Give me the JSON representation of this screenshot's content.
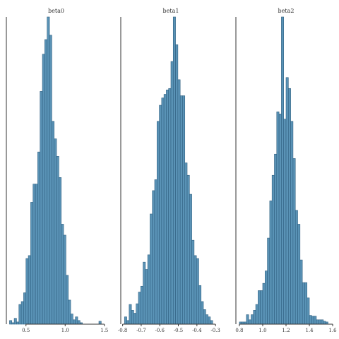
{
  "chart_data": [
    {
      "type": "histogram",
      "title": "beta0",
      "xlim": [
        0.25,
        1.52
      ],
      "xticks": [
        0.5,
        1.0,
        1.5
      ],
      "xtick_labels": [
        "0.5",
        "1.0",
        "1.5"
      ],
      "bins": [
        {
          "start": 0.29,
          "end": 0.32,
          "count": 5
        },
        {
          "start": 0.32,
          "end": 0.35,
          "count": 2
        },
        {
          "start": 0.35,
          "end": 0.38,
          "count": 8
        },
        {
          "start": 0.38,
          "end": 0.41,
          "count": 3
        },
        {
          "start": 0.41,
          "end": 0.44,
          "count": 27
        },
        {
          "start": 0.44,
          "end": 0.47,
          "count": 31
        },
        {
          "start": 0.47,
          "end": 0.5,
          "count": 43
        },
        {
          "start": 0.5,
          "end": 0.53,
          "count": 90
        },
        {
          "start": 0.53,
          "end": 0.56,
          "count": 94
        },
        {
          "start": 0.56,
          "end": 0.59,
          "count": 167
        },
        {
          "start": 0.59,
          "end": 0.62,
          "count": 192
        },
        {
          "start": 0.62,
          "end": 0.65,
          "count": 192
        },
        {
          "start": 0.65,
          "end": 0.68,
          "count": 236
        },
        {
          "start": 0.68,
          "end": 0.71,
          "count": 319
        },
        {
          "start": 0.71,
          "end": 0.74,
          "count": 370
        },
        {
          "start": 0.74,
          "end": 0.77,
          "count": 390
        },
        {
          "start": 0.77,
          "end": 0.8,
          "count": 421
        },
        {
          "start": 0.8,
          "end": 0.83,
          "count": 396
        },
        {
          "start": 0.83,
          "end": 0.86,
          "count": 278
        },
        {
          "start": 0.86,
          "end": 0.89,
          "count": 254
        },
        {
          "start": 0.89,
          "end": 0.92,
          "count": 230
        },
        {
          "start": 0.92,
          "end": 0.95,
          "count": 201
        },
        {
          "start": 0.95,
          "end": 0.98,
          "count": 137
        },
        {
          "start": 0.98,
          "end": 1.01,
          "count": 122
        },
        {
          "start": 1.01,
          "end": 1.04,
          "count": 67
        },
        {
          "start": 1.04,
          "end": 1.07,
          "count": 33
        },
        {
          "start": 1.07,
          "end": 1.1,
          "count": 14
        },
        {
          "start": 1.1,
          "end": 1.13,
          "count": 6
        },
        {
          "start": 1.13,
          "end": 1.16,
          "count": 10
        },
        {
          "start": 1.16,
          "end": 1.19,
          "count": 5
        },
        {
          "start": 1.19,
          "end": 1.22,
          "count": 2
        },
        {
          "start": 1.22,
          "end": 1.25,
          "count": 0
        },
        {
          "start": 1.25,
          "end": 1.28,
          "count": 0
        },
        {
          "start": 1.28,
          "end": 1.31,
          "count": 0
        },
        {
          "start": 1.31,
          "end": 1.34,
          "count": 0
        },
        {
          "start": 1.34,
          "end": 1.37,
          "count": 0
        },
        {
          "start": 1.37,
          "end": 1.4,
          "count": 0
        },
        {
          "start": 1.4,
          "end": 1.43,
          "count": 0
        },
        {
          "start": 1.43,
          "end": 1.46,
          "count": 4
        }
      ]
    },
    {
      "type": "histogram",
      "title": "beta1",
      "xlim": [
        -0.81,
        -0.27
      ],
      "xticks": [
        -0.8,
        -0.7,
        -0.6,
        -0.5,
        -0.4,
        -0.3
      ],
      "xtick_labels": [
        "-0.8",
        "-0.7",
        "-0.6",
        "-0.5",
        "-0.4",
        "-0.3"
      ],
      "bins": [
        {
          "start": -0.79,
          "end": -0.7775,
          "count": 10
        },
        {
          "start": -0.7775,
          "end": -0.765,
          "count": 5
        },
        {
          "start": -0.765,
          "end": -0.7525,
          "count": 27
        },
        {
          "start": -0.7525,
          "end": -0.74,
          "count": 19
        },
        {
          "start": -0.74,
          "end": -0.7275,
          "count": 15
        },
        {
          "start": -0.7275,
          "end": -0.715,
          "count": 28
        },
        {
          "start": -0.715,
          "end": -0.7025,
          "count": 44
        },
        {
          "start": -0.7025,
          "end": -0.69,
          "count": 52
        },
        {
          "start": -0.69,
          "end": -0.6775,
          "count": 85
        },
        {
          "start": -0.6775,
          "end": -0.665,
          "count": 75
        },
        {
          "start": -0.665,
          "end": -0.6525,
          "count": 95
        },
        {
          "start": -0.6525,
          "end": -0.64,
          "count": 151
        },
        {
          "start": -0.64,
          "end": -0.6275,
          "count": 183
        },
        {
          "start": -0.6275,
          "end": -0.615,
          "count": 198
        },
        {
          "start": -0.615,
          "end": -0.6025,
          "count": 278
        },
        {
          "start": -0.6025,
          "end": -0.59,
          "count": 300
        },
        {
          "start": -0.59,
          "end": -0.5775,
          "count": 310
        },
        {
          "start": -0.5775,
          "end": -0.565,
          "count": 315
        },
        {
          "start": -0.565,
          "end": -0.5525,
          "count": 321
        },
        {
          "start": -0.5525,
          "end": -0.54,
          "count": 323
        },
        {
          "start": -0.54,
          "end": -0.5275,
          "count": 360
        },
        {
          "start": -0.5275,
          "end": -0.515,
          "count": 421
        },
        {
          "start": -0.515,
          "end": -0.5025,
          "count": 383
        },
        {
          "start": -0.5025,
          "end": -0.49,
          "count": 335
        },
        {
          "start": -0.49,
          "end": -0.4775,
          "count": 313
        },
        {
          "start": -0.4775,
          "end": -0.465,
          "count": 313
        },
        {
          "start": -0.465,
          "end": -0.4525,
          "count": 221
        },
        {
          "start": -0.4525,
          "end": -0.44,
          "count": 204
        },
        {
          "start": -0.44,
          "end": -0.4275,
          "count": 178
        },
        {
          "start": -0.4275,
          "end": -0.415,
          "count": 115
        },
        {
          "start": -0.415,
          "end": -0.4025,
          "count": 94
        },
        {
          "start": -0.4025,
          "end": -0.39,
          "count": 90
        },
        {
          "start": -0.39,
          "end": -0.3775,
          "count": 53
        },
        {
          "start": -0.3775,
          "end": -0.365,
          "count": 31
        },
        {
          "start": -0.365,
          "end": -0.3525,
          "count": 20
        },
        {
          "start": -0.3525,
          "end": -0.34,
          "count": 13
        },
        {
          "start": -0.34,
          "end": -0.3275,
          "count": 10
        },
        {
          "start": -0.3275,
          "end": -0.315,
          "count": 5
        }
      ]
    },
    {
      "type": "histogram",
      "title": "beta2",
      "xlim": [
        0.77,
        1.63
      ],
      "xticks": [
        0.8,
        1.0,
        1.2,
        1.4,
        1.6
      ],
      "xtick_labels": [
        "0.8",
        "1.0",
        "1.2",
        "1.4",
        "1.6"
      ],
      "bins": [
        {
          "start": 0.8,
          "end": 0.82,
          "count": 3
        },
        {
          "start": 0.82,
          "end": 0.84,
          "count": 3
        },
        {
          "start": 0.84,
          "end": 0.86,
          "count": 3
        },
        {
          "start": 0.86,
          "end": 0.88,
          "count": 13
        },
        {
          "start": 0.88,
          "end": 0.9,
          "count": 6
        },
        {
          "start": 0.9,
          "end": 0.92,
          "count": 13
        },
        {
          "start": 0.92,
          "end": 0.94,
          "count": 19
        },
        {
          "start": 0.94,
          "end": 0.96,
          "count": 27
        },
        {
          "start": 0.96,
          "end": 0.98,
          "count": 46
        },
        {
          "start": 0.98,
          "end": 1.0,
          "count": 46
        },
        {
          "start": 1.0,
          "end": 1.02,
          "count": 56
        },
        {
          "start": 1.02,
          "end": 1.04,
          "count": 73
        },
        {
          "start": 1.04,
          "end": 1.06,
          "count": 118
        },
        {
          "start": 1.06,
          "end": 1.08,
          "count": 169
        },
        {
          "start": 1.08,
          "end": 1.1,
          "count": 204
        },
        {
          "start": 1.1,
          "end": 1.12,
          "count": 233
        },
        {
          "start": 1.12,
          "end": 1.14,
          "count": 291
        },
        {
          "start": 1.14,
          "end": 1.16,
          "count": 288
        },
        {
          "start": 1.16,
          "end": 1.18,
          "count": 421
        },
        {
          "start": 1.18,
          "end": 1.2,
          "count": 281
        },
        {
          "start": 1.2,
          "end": 1.22,
          "count": 338
        },
        {
          "start": 1.22,
          "end": 1.24,
          "count": 323
        },
        {
          "start": 1.24,
          "end": 1.26,
          "count": 278
        },
        {
          "start": 1.26,
          "end": 1.28,
          "count": 227
        },
        {
          "start": 1.28,
          "end": 1.3,
          "count": 156
        },
        {
          "start": 1.3,
          "end": 1.32,
          "count": 137
        },
        {
          "start": 1.32,
          "end": 1.34,
          "count": 88
        },
        {
          "start": 1.34,
          "end": 1.36,
          "count": 57
        },
        {
          "start": 1.36,
          "end": 1.38,
          "count": 57
        },
        {
          "start": 1.38,
          "end": 1.4,
          "count": 36
        },
        {
          "start": 1.4,
          "end": 1.42,
          "count": 12
        },
        {
          "start": 1.42,
          "end": 1.44,
          "count": 11
        },
        {
          "start": 1.44,
          "end": 1.46,
          "count": 11
        },
        {
          "start": 1.46,
          "end": 1.48,
          "count": 6
        },
        {
          "start": 1.48,
          "end": 1.5,
          "count": 6
        },
        {
          "start": 1.5,
          "end": 1.52,
          "count": 6
        },
        {
          "start": 1.52,
          "end": 1.54,
          "count": 4
        },
        {
          "start": 1.54,
          "end": 1.56,
          "count": 3
        }
      ]
    }
  ],
  "colors": {
    "bar_fill": "#5a93b6",
    "bar_stroke": "#2f5f80",
    "axis": "#333333"
  }
}
